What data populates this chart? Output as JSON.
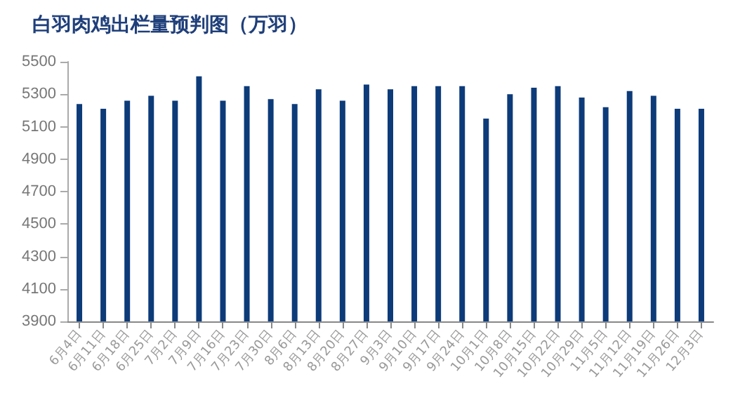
{
  "chart_data": {
    "type": "bar",
    "title": "白羽肉鸡出栏量预判图（万羽）",
    "categories": [
      "6月4日",
      "6月11日",
      "6月18日",
      "6月25日",
      "7月2日",
      "7月9日",
      "7月16日",
      "7月23日",
      "7月30日",
      "8月6日",
      "8月13日",
      "8月20日",
      "8月27日",
      "9月3日",
      "9月10日",
      "9月17日",
      "9月24日",
      "10月1日",
      "10月8日",
      "10月15日",
      "10月22日",
      "10月29日",
      "11月5日",
      "11月12日",
      "11月19日",
      "11月26日",
      "12月3日"
    ],
    "values": [
      5240,
      5210,
      5260,
      5290,
      5260,
      5410,
      5260,
      5350,
      5270,
      5240,
      5330,
      5260,
      5360,
      5330,
      5350,
      5350,
      5350,
      5150,
      5300,
      5340,
      5350,
      5280,
      5220,
      5320,
      5290,
      5210,
      5210
    ],
    "color": "#0d3b7a",
    "ylim": [
      3900,
      5500
    ],
    "yticks": [
      3900,
      4100,
      4300,
      4500,
      4700,
      4900,
      5100,
      5300,
      5500
    ],
    "grid": false
  }
}
